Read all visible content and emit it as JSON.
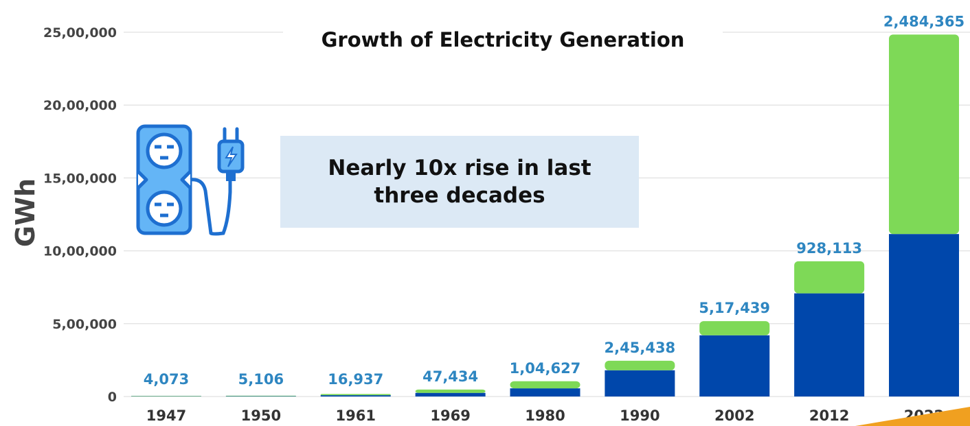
{
  "chart_data": {
    "type": "bar",
    "title": "Growth of Electricity Generation",
    "ylabel": "GWh",
    "xlabel": "",
    "categories": [
      "1947",
      "1950",
      "1961",
      "1969",
      "1980",
      "1990",
      "2002",
      "2012",
      "2022"
    ],
    "series": [
      {
        "values": [
          2000,
          2500,
          9000,
          25000,
          56000,
          180000,
          420000,
          708000,
          1115000
        ]
      },
      {
        "values": [
          2073,
          2606,
          7937,
          22434,
          48627,
          65438,
          97439,
          220113,
          1369365
        ]
      }
    ],
    "totals": [
      4073,
      5106,
      16937,
      47434,
      104627,
      245438,
      517439,
      928113,
      2484365
    ],
    "data_labels": [
      "4,073",
      "5,106",
      "16,937",
      "47,434",
      "1,04,627",
      "2,45,438",
      "5,17,439",
      "928,113",
      "2,484,365"
    ],
    "yticks": [
      0,
      500000,
      1000000,
      1500000,
      2000000,
      2500000
    ],
    "ytick_labels": [
      "0",
      "5,00,000",
      "10,00,000",
      "15,00,000",
      "20,00,000",
      "25,00,000"
    ],
    "ylim": [
      0,
      2500000
    ],
    "grid": true,
    "stacked": true,
    "annotation": "Nearly 10x rise in last three decades",
    "colors": {
      "lower": "#0047AB",
      "upper": "#7ED957",
      "data_label": "#2E86C1",
      "grid": "#E5E5E5",
      "callout_bg": "#DCE9F5",
      "icon": "#1E88E5",
      "icon_fill": "#64B5F6"
    }
  },
  "icons": {
    "illustration": "power-strip-plug-icon"
  }
}
